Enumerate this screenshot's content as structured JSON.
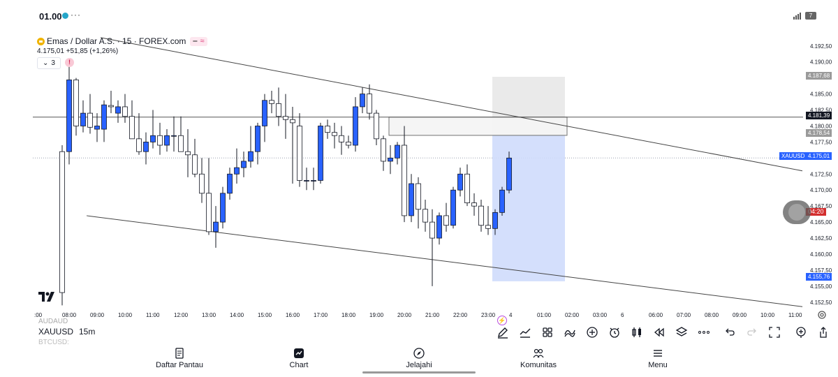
{
  "status_bar": {
    "time": "01.00",
    "dots": "···",
    "battery": "7"
  },
  "legend": {
    "symbol_title": "Emas / Dollar A.S. · 15 · FOREX.com",
    "badge_minus": "‒",
    "badge_approx": "≈",
    "price_line": "4.175,01 +51,85 (+1,26%)",
    "indicator_count": "3",
    "indicator_chevron": "⌄",
    "alert_mark": "!"
  },
  "price_axis": {
    "labels": [
      "4.192,50",
      "4.190,00",
      "4.185,00",
      "4.182,50",
      "4.180,00",
      "4.177,50",
      "4.172,50",
      "4.170,00",
      "4.167,50",
      "4.165,00",
      "4.162,50",
      "4.160,00",
      "4.157,50",
      "4.155,00",
      "4.152,50"
    ],
    "tag_upper_box": "4.187,68",
    "tag_horizontal": "4.181,39",
    "tag_entry": "4.178,54",
    "tag_last": "4.175,01",
    "tag_symbol": "XAUUSD",
    "tag_lower_box": "4.155,76",
    "countdown": "04:20"
  },
  "time_axis": {
    "labels": [
      ":00",
      "08:00",
      "09:00",
      "10:00",
      "11:00",
      "12:00",
      "13:00",
      "14:00",
      "15:00",
      "16:00",
      "17:00",
      "18:00",
      "19:00",
      "20:00",
      "21:00",
      "22:00",
      "23:00",
      "4",
      "01:00",
      "02:00",
      "03:00",
      "6",
      "06:00",
      "07:00",
      "08:00",
      "09:00",
      "10:00",
      "11:00"
    ]
  },
  "chart_data": {
    "type": "candlestick",
    "symbol": "XAUUSD",
    "interval": "15",
    "candles": [
      {
        "o": 4176.0,
        "h": 4177.0,
        "l": 4152.0,
        "c": 4154.0
      },
      {
        "o": 4176.0,
        "h": 4190.5,
        "l": 4174.0,
        "c": 4187.2
      },
      {
        "o": 4187.2,
        "h": 4187.5,
        "l": 4178.5,
        "c": 4180.0
      },
      {
        "o": 4180.0,
        "h": 4184.0,
        "l": 4179.0,
        "c": 4182.0
      },
      {
        "o": 4182.0,
        "h": 4185.0,
        "l": 4178.8,
        "c": 4179.8
      },
      {
        "o": 4179.5,
        "h": 4182.0,
        "l": 4177.5,
        "c": 4180.0
      },
      {
        "o": 4179.5,
        "h": 4184.0,
        "l": 4177.5,
        "c": 4183.3
      },
      {
        "o": 4183.2,
        "h": 4185.5,
        "l": 4182.0,
        "c": 4183.0
      },
      {
        "o": 4182.0,
        "h": 4184.0,
        "l": 4180.5,
        "c": 4183.0
      },
      {
        "o": 4183.0,
        "h": 4185.0,
        "l": 4180.5,
        "c": 4181.5
      },
      {
        "o": 4181.5,
        "h": 4184.0,
        "l": 4178.0,
        "c": 4178.0
      },
      {
        "o": 4178.0,
        "h": 4182.0,
        "l": 4175.5,
        "c": 4176.0
      },
      {
        "o": 4176.0,
        "h": 4179.0,
        "l": 4174.0,
        "c": 4177.5
      },
      {
        "o": 4177.5,
        "h": 4182.5,
        "l": 4176.5,
        "c": 4178.5
      },
      {
        "o": 4178.5,
        "h": 4180.5,
        "l": 4175.5,
        "c": 4177.0
      },
      {
        "o": 4177.0,
        "h": 4179.5,
        "l": 4176.0,
        "c": 4178.5
      },
      {
        "o": 4178.5,
        "h": 4181.5,
        "l": 4176.0,
        "c": 4178.5
      },
      {
        "o": 4178.5,
        "h": 4181.5,
        "l": 4176.0,
        "c": 4176.0
      },
      {
        "o": 4176.0,
        "h": 4179.5,
        "l": 4172.0,
        "c": 4175.5
      },
      {
        "o": 4175.5,
        "h": 4178.0,
        "l": 4172.0,
        "c": 4172.5
      },
      {
        "o": 4172.5,
        "h": 4175.0,
        "l": 4168.0,
        "c": 4169.5
      },
      {
        "o": 4169.5,
        "h": 4175.0,
        "l": 4163.0,
        "c": 4163.5
      },
      {
        "o": 4163.5,
        "h": 4167.5,
        "l": 4161.0,
        "c": 4165.0
      },
      {
        "o": 4165.0,
        "h": 4170.5,
        "l": 4164.0,
        "c": 4169.5
      },
      {
        "o": 4169.5,
        "h": 4173.5,
        "l": 4168.5,
        "c": 4172.5
      },
      {
        "o": 4172.5,
        "h": 4176.5,
        "l": 4171.0,
        "c": 4173.5
      },
      {
        "o": 4173.5,
        "h": 4176.0,
        "l": 4172.0,
        "c": 4174.5
      },
      {
        "o": 4174.5,
        "h": 4180.0,
        "l": 4173.5,
        "c": 4176.0
      },
      {
        "o": 4176.0,
        "h": 4180.5,
        "l": 4174.0,
        "c": 4180.0
      },
      {
        "o": 4180.0,
        "h": 4185.0,
        "l": 4177.5,
        "c": 4184.0
      },
      {
        "o": 4184.0,
        "h": 4185.5,
        "l": 4182.0,
        "c": 4183.5
      },
      {
        "o": 4183.5,
        "h": 4186.0,
        "l": 4180.0,
        "c": 4181.5
      },
      {
        "o": 4181.5,
        "h": 4185.0,
        "l": 4178.0,
        "c": 4181.0
      },
      {
        "o": 4181.0,
        "h": 4183.0,
        "l": 4171.0,
        "c": 4180.5
      },
      {
        "o": 4180.0,
        "h": 4182.0,
        "l": 4170.5,
        "c": 4171.5
      },
      {
        "o": 4171.5,
        "h": 4173.5,
        "l": 4170.0,
        "c": 4171.5
      },
      {
        "o": 4171.5,
        "h": 4173.5,
        "l": 4170.0,
        "c": 4171.5
      },
      {
        "o": 4171.5,
        "h": 4180.5,
        "l": 4171.0,
        "c": 4180.0
      },
      {
        "o": 4180.0,
        "h": 4181.0,
        "l": 4178.0,
        "c": 4179.0
      },
      {
        "o": 4179.0,
        "h": 4180.5,
        "l": 4176.5,
        "c": 4178.5
      },
      {
        "o": 4178.5,
        "h": 4180.0,
        "l": 4175.5,
        "c": 4177.5
      },
      {
        "o": 4177.5,
        "h": 4178.5,
        "l": 4176.5,
        "c": 4177.0
      },
      {
        "o": 4177.0,
        "h": 4184.5,
        "l": 4176.0,
        "c": 4183.0
      },
      {
        "o": 4183.0,
        "h": 4186.0,
        "l": 4182.0,
        "c": 4185.0
      },
      {
        "o": 4185.0,
        "h": 4186.5,
        "l": 4181.0,
        "c": 4182.0
      },
      {
        "o": 4182.0,
        "h": 4182.5,
        "l": 4177.0,
        "c": 4178.0
      },
      {
        "o": 4178.0,
        "h": 4178.5,
        "l": 4173.0,
        "c": 4174.5
      },
      {
        "o": 4174.5,
        "h": 4177.0,
        "l": 4172.5,
        "c": 4175.0
      },
      {
        "o": 4175.0,
        "h": 4177.5,
        "l": 4174.0,
        "c": 4177.0
      },
      {
        "o": 4177.0,
        "h": 4180.0,
        "l": 4165.0,
        "c": 4166.0
      },
      {
        "o": 4166.0,
        "h": 4172.5,
        "l": 4165.0,
        "c": 4171.0
      },
      {
        "o": 4171.0,
        "h": 4172.0,
        "l": 4164.0,
        "c": 4167.0
      },
      {
        "o": 4167.0,
        "h": 4168.5,
        "l": 4163.5,
        "c": 4165.0
      },
      {
        "o": 4165.0,
        "h": 4167.0,
        "l": 4155.0,
        "c": 4162.5
      },
      {
        "o": 4162.5,
        "h": 4166.5,
        "l": 4161.5,
        "c": 4166.0
      },
      {
        "o": 4166.0,
        "h": 4168.0,
        "l": 4163.5,
        "c": 4164.5
      },
      {
        "o": 4164.5,
        "h": 4170.5,
        "l": 4164.0,
        "c": 4170.0
      },
      {
        "o": 4170.0,
        "h": 4173.5,
        "l": 4169.0,
        "c": 4172.5
      },
      {
        "o": 4172.5,
        "h": 4174.0,
        "l": 4167.5,
        "c": 4168.0
      },
      {
        "o": 4168.0,
        "h": 4169.5,
        "l": 4166.0,
        "c": 4167.5
      },
      {
        "o": 4167.5,
        "h": 4168.5,
        "l": 4163.5,
        "c": 4164.5
      },
      {
        "o": 4164.5,
        "h": 4167.5,
        "l": 4163.0,
        "c": 4164.0
      },
      {
        "o": 4164.0,
        "h": 4167.0,
        "l": 4163.0,
        "c": 4166.5
      },
      {
        "o": 4166.5,
        "h": 4170.5,
        "l": 4166.0,
        "c": 4170.0
      },
      {
        "o": 4170.0,
        "h": 4176.0,
        "l": 4169.5,
        "c": 4175.0
      }
    ],
    "horizontal_line": 4181.39,
    "entry_zone": [
      4178.54,
      4181.39
    ],
    "risk_reward": {
      "upper": 4187.68,
      "entry": 4178.54,
      "lower": 4155.76
    },
    "trendlines": [
      {
        "from": [
          0,
          4193.8
        ],
        "to": [
          80,
          4173.0
        ]
      },
      {
        "from": [
          -2,
          4166.0
        ],
        "to": [
          80,
          4151.8
        ]
      }
    ],
    "last_price": 4175.01,
    "ylim": [
      4151.5,
      4194.0
    ],
    "colors": {
      "up": "#2962ff",
      "down": "#ffffff",
      "outline": "#131722",
      "accent": "#2962ff"
    }
  },
  "symbol_switcher": {
    "above": "AUDAUD",
    "current": "XAUUSD",
    "interval": "15m",
    "below": "BTCUSD:"
  },
  "toolbar": {
    "icons": [
      "pencil-icon",
      "chart-type-icon",
      "grid-icon",
      "indicators-icon",
      "add-icon",
      "alarm-icon",
      "candles-icon",
      "replay-icon",
      "layers-icon",
      "more-icon",
      "undo-icon",
      "redo-icon",
      "fullscreen-icon",
      "add-alert-icon",
      "share-icon"
    ]
  },
  "bottom_nav": {
    "items": [
      {
        "label": "Daftar Pantau",
        "icon": "watchlist-icon"
      },
      {
        "label": "Chart",
        "icon": "chart-icon"
      },
      {
        "label": "Jelajahi",
        "icon": "compass-icon"
      },
      {
        "label": "Komunitas",
        "icon": "community-icon"
      },
      {
        "label": "Menu",
        "icon": "menu-icon"
      }
    ]
  }
}
